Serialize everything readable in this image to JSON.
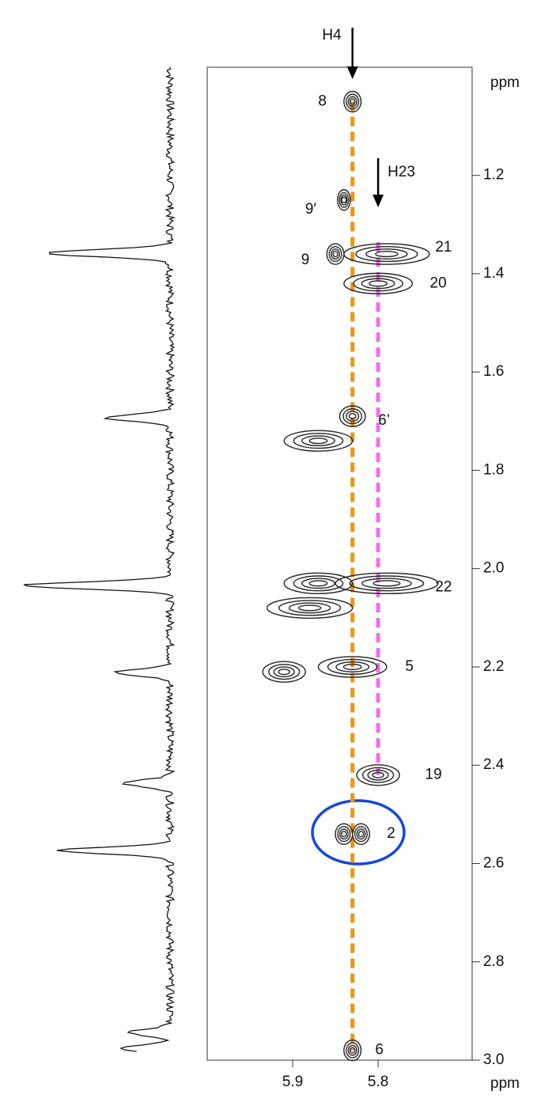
{
  "chart_data": {
    "type": "contour",
    "x_label": "ppm",
    "y_label": "ppm",
    "xlim": [
      6.0,
      5.69
    ],
    "xticks": [
      5.9,
      5.8
    ],
    "ylim": [
      0.98,
      3.0
    ],
    "yticks": [
      1.2,
      1.4,
      1.6,
      1.8,
      {
        "value": 2,
        "label": "2.0"
      },
      2.2,
      2.4,
      2.6,
      2.8,
      {
        "value": 3,
        "label": "3.0"
      }
    ],
    "x": [
      5.83,
      5.84,
      5.85,
      5.79,
      5.8,
      5.83,
      5.87,
      5.79,
      5.87,
      5.88,
      5.83,
      5.91,
      5.8,
      5.84,
      5.82,
      5.83
    ],
    "values": [
      1.05,
      1.25,
      1.36,
      1.36,
      1.42,
      1.69,
      1.74,
      2.03,
      2.03,
      2.08,
      2.2,
      2.21,
      2.42,
      2.54,
      2.54,
      2.98
    ],
    "widths": [
      0.02,
      0.015,
      0.02,
      0.1,
      0.08,
      0.03,
      0.08,
      0.12,
      0.08,
      0.1,
      0.08,
      0.05,
      0.05,
      0.02,
      0.02,
      0.02
    ],
    "labels": [
      "8",
      "9′",
      "9",
      "21",
      "20",
      "6’",
      null,
      "22",
      null,
      null,
      "5",
      null,
      "19",
      null,
      "2",
      "6"
    ],
    "color": "#222222",
    "markers": [
      {
        "label": "H4",
        "x": 5.83,
        "color": "#f0950f"
      },
      {
        "label": "H23",
        "x": 5.8,
        "color": "#f06ef0"
      }
    ]
  }
}
